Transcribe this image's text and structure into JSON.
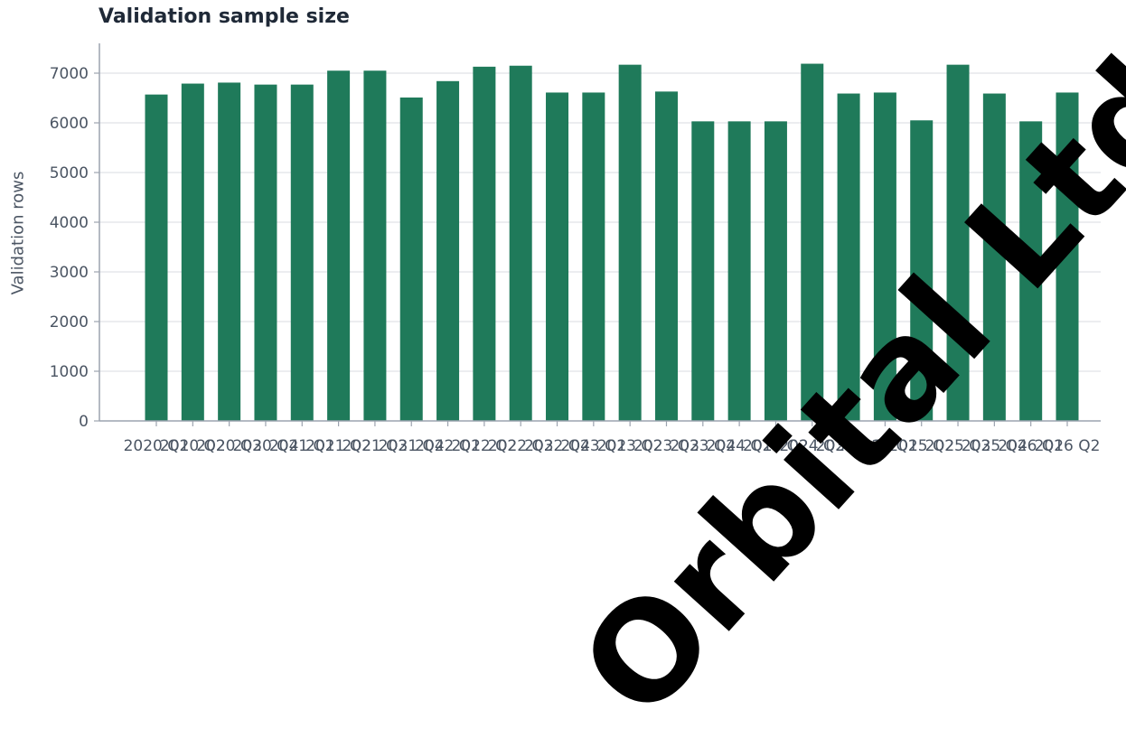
{
  "chart_data": {
    "type": "bar",
    "title": "Validation sample size",
    "xlabel": "",
    "ylabel": "Validation rows",
    "ylim": [
      0,
      7600
    ],
    "yticks": [
      0,
      1000,
      2000,
      3000,
      4000,
      5000,
      6000,
      7000
    ],
    "grid": true,
    "bar_color": "#1f7a5a",
    "categories": [
      "2020 Q1",
      "2020 Q2",
      "2020 Q3",
      "2020 Q4",
      "2021 Q1",
      "2021 Q2",
      "2021 Q3",
      "2021 Q4",
      "2022 Q1",
      "2022 Q2",
      "2022 Q3",
      "2022 Q4",
      "2023 Q1",
      "2023 Q2",
      "2023 Q3",
      "2023 Q4",
      "2024 Q1",
      "2024 Q2",
      "2024 Q3",
      "2024 Q4",
      "2025 Q1",
      "2025 Q2",
      "2025 Q3",
      "2025 Q4",
      "2026 Q1",
      "2026 Q2"
    ],
    "values": [
      6570,
      6790,
      6810,
      6770,
      6770,
      7050,
      7050,
      6510,
      6840,
      7130,
      7150,
      6610,
      6610,
      7170,
      6630,
      6030,
      6030,
      6030,
      7190,
      6590,
      6610,
      6050,
      7170,
      6590,
      6030,
      6610
    ]
  },
  "watermark": "Orbital Ltd"
}
